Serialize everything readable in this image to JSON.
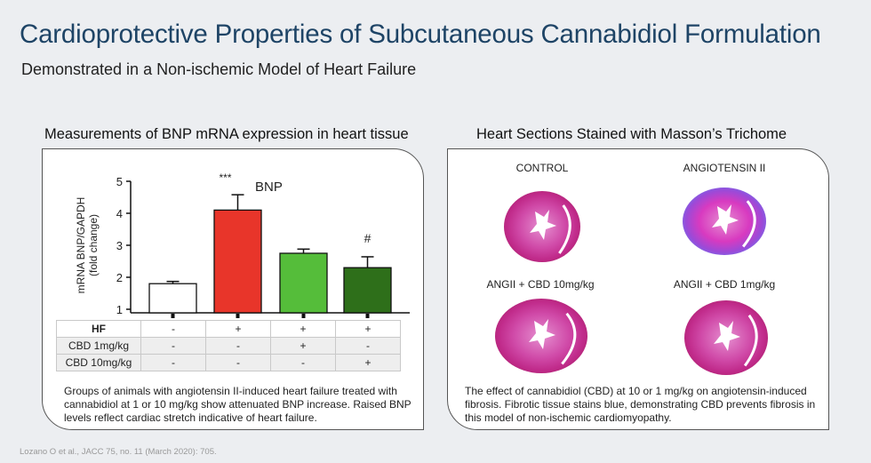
{
  "header": {
    "title": "Cardioprotective Properties of Subcutaneous Cannabidiol Formulation",
    "subtitle": "Demonstrated in a Non-ischemic Model of Heart Failure"
  },
  "left_panel": {
    "title": "Measurements of BNP mRNA expression in heart tissue",
    "caption": "Groups of animals with angiotensin II-induced heart failure treated with cannabidiol at 1 or 10 mg/kg show attenuated BNP increase. Raised BNP levels reflect cardiac stretch indicative of heart failure.",
    "table": {
      "rows": [
        {
          "label": "HF",
          "cells": [
            "-",
            "+",
            "+",
            "+"
          ]
        },
        {
          "label": "CBD 1mg/kg",
          "cells": [
            "-",
            "-",
            "+",
            "-"
          ]
        },
        {
          "label": "CBD 10mg/kg",
          "cells": [
            "-",
            "-",
            "-",
            "+"
          ]
        }
      ]
    }
  },
  "chart_data": {
    "type": "bar",
    "title": "BNP",
    "ylabel": "mRNA BNP/GAPDH (fold change)",
    "ylim": [
      1,
      5
    ],
    "yticks": [
      "1",
      "2",
      "3",
      "4",
      "5"
    ],
    "categories": [
      "Control",
      "HF",
      "HF + CBD 1mg/kg",
      "HF + CBD 10mg/kg"
    ],
    "values": [
      1.8,
      4.1,
      2.75,
      2.3
    ],
    "errors": [
      0.07,
      0.48,
      0.13,
      0.34
    ],
    "colors": [
      "#ffffff",
      "#e8352a",
      "#55bd3a",
      "#2e6f1a"
    ],
    "annotations": [
      "",
      "***",
      "",
      "#"
    ]
  },
  "right_panel": {
    "title": "Heart Sections Stained with Masson’s Trichome",
    "sections": [
      {
        "label": "CONTROL",
        "blue": 0.15
      },
      {
        "label": "ANGIOTENSIN II",
        "blue": 0.6
      },
      {
        "label": "ANGII + CBD 10mg/kg",
        "blue": 0.1
      },
      {
        "label": "ANGII + CBD 1mg/kg",
        "blue": 0.1
      }
    ],
    "caption": "The effect of cannabidiol (CBD) at 10 or 1 mg/kg on angiotensin-induced fibrosis. Fibrotic tissue stains blue, demonstrating CBD prevents fibrosis in this model of non-ischemic cardiomyopathy."
  },
  "citation": {
    "text": "Lozano O et al., JACC 75, no. 11 (March 2020): 705."
  }
}
